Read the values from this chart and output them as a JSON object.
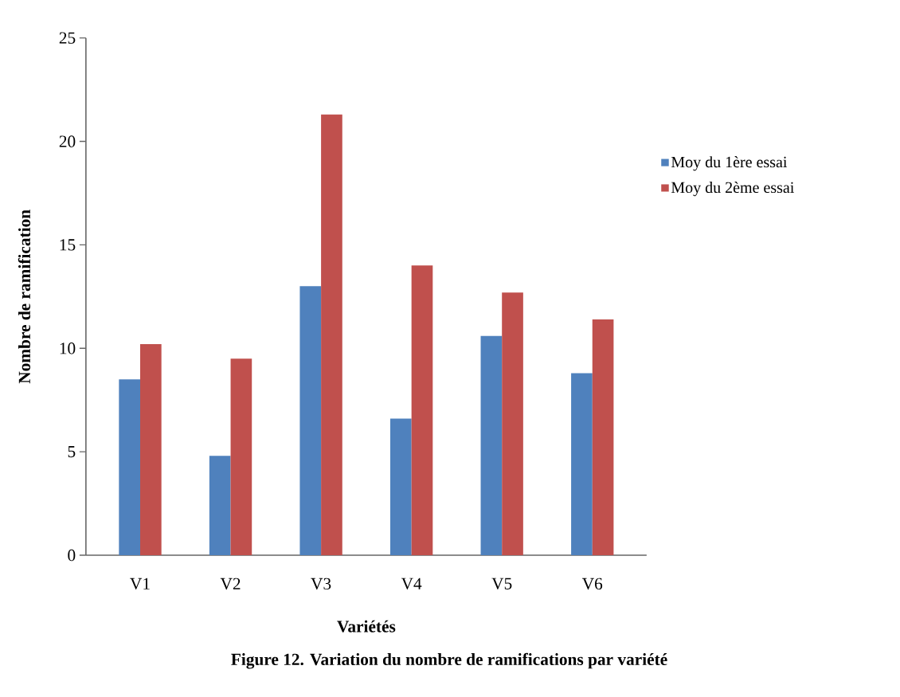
{
  "chart_data": {
    "type": "bar",
    "xlabel": "Variétés",
    "ylabel": "Nombre de ramification",
    "annotations": [
      "Figure  12. Variation du nombre de ramifications par variété"
    ],
    "categories": [
      "V1",
      "V2",
      "V3",
      "V4",
      "V5",
      "V6"
    ],
    "series": [
      {
        "name": "Moy du 1ère essai",
        "color": "#4f81bd",
        "values": [
          8.5,
          4.8,
          13.0,
          6.6,
          10.6,
          8.8
        ]
      },
      {
        "name": "Moy du 2ème essai",
        "color": "#c0504d",
        "values": [
          10.2,
          9.5,
          21.3,
          14.0,
          12.7,
          11.4
        ]
      }
    ],
    "ylim": [
      0,
      25
    ],
    "yticks": [
      0,
      5,
      10,
      15,
      20,
      25
    ],
    "grid": false,
    "legend": "right"
  }
}
